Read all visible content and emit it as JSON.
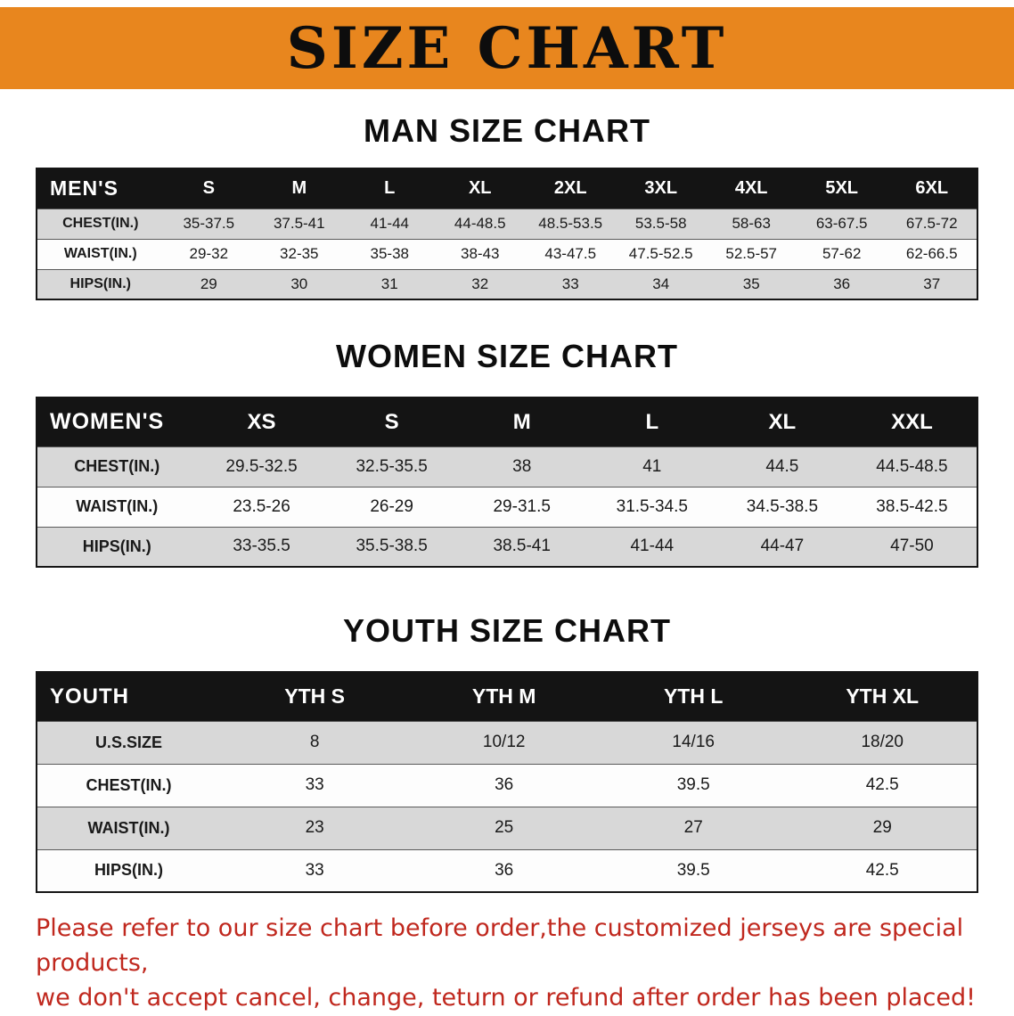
{
  "banner": {
    "title": "SIZE CHART",
    "bg_color": "#E8861E",
    "title_color": "#0d0d0d"
  },
  "colors": {
    "table_header_bg": "#141414",
    "table_header_text": "#ffffff",
    "row_shaded": "#D8D8D8",
    "row_plain": "#FDFDFD",
    "disclaimer_text": "#C0281E"
  },
  "sections": [
    {
      "id": "men",
      "heading": "MAN SIZE CHART",
      "table": {
        "header": [
          "MEN'S",
          "S",
          "M",
          "L",
          "XL",
          "2XL",
          "3XL",
          "4XL",
          "5XL",
          "6XL"
        ],
        "rows": [
          [
            "CHEST(IN.)",
            "35-37.5",
            "37.5-41",
            "41-44",
            "44-48.5",
            "48.5-53.5",
            "53.5-58",
            "58-63",
            "63-67.5",
            "67.5-72"
          ],
          [
            "WAIST(IN.)",
            "29-32",
            "32-35",
            "35-38",
            "38-43",
            "43-47.5",
            "47.5-52.5",
            "52.5-57",
            "57-62",
            "62-66.5"
          ],
          [
            "HIPS(IN.)",
            "29",
            "30",
            "31",
            "32",
            "33",
            "34",
            "35",
            "36",
            "37"
          ]
        ]
      }
    },
    {
      "id": "women",
      "heading": "WOMEN SIZE CHART",
      "table": {
        "header": [
          "WOMEN'S",
          "XS",
          "S",
          "M",
          "L",
          "XL",
          "XXL"
        ],
        "rows": [
          [
            "CHEST(IN.)",
            "29.5-32.5",
            "32.5-35.5",
            "38",
            "41",
            "44.5",
            "44.5-48.5"
          ],
          [
            "WAIST(IN.)",
            "23.5-26",
            "26-29",
            "29-31.5",
            "31.5-34.5",
            "34.5-38.5",
            "38.5-42.5"
          ],
          [
            "HIPS(IN.)",
            "33-35.5",
            "35.5-38.5",
            "38.5-41",
            "41-44",
            "44-47",
            "47-50"
          ]
        ]
      }
    },
    {
      "id": "youth",
      "heading": "YOUTH SIZE CHART",
      "table": {
        "header": [
          "YOUTH",
          "YTH S",
          "YTH M",
          "YTH L",
          "YTH XL"
        ],
        "rows": [
          [
            "U.S.SIZE",
            "8",
            "10/12",
            "14/16",
            "18/20"
          ],
          [
            "CHEST(IN.)",
            "33",
            "36",
            "39.5",
            "42.5"
          ],
          [
            "WAIST(IN.)",
            "23",
            "25",
            "27",
            "29"
          ],
          [
            "HIPS(IN.)",
            "33",
            "36",
            "39.5",
            "42.5"
          ]
        ]
      }
    }
  ],
  "disclaimer": {
    "line1": "Please refer to our size chart before order,the customized jerseys are special products,",
    "line2": "we don't accept cancel, change, teturn or refund after order has been placed!"
  }
}
